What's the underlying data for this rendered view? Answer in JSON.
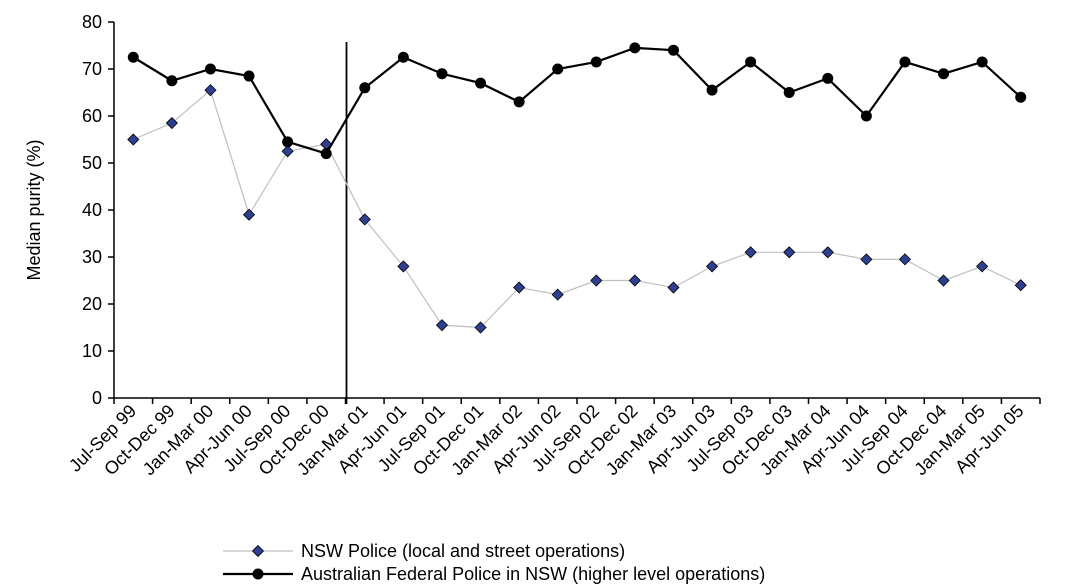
{
  "chart_data": {
    "type": "line",
    "ylabel": "Median purity (%)",
    "xlabel": "",
    "ylim": [
      0,
      80
    ],
    "yticks": [
      0,
      10,
      20,
      30,
      40,
      50,
      60,
      70,
      80
    ],
    "grid": false,
    "legend_position": "bottom",
    "categories": [
      "Jul-Sep 99",
      "Oct-Dec 99",
      "Jan-Mar 00",
      "Apr-Jun 00",
      "Jul-Sep 00",
      "Oct-Dec 00",
      "Jan-Mar 01",
      "Apr-Jun 01",
      "Jul-Sep 01",
      "Oct-Dec 01",
      "Jan-Mar 02",
      "Apr-Jun 02",
      "Jul-Sep 02",
      "Oct-Dec 02",
      "Jan-Mar 03",
      "Apr-Jun 03",
      "Jul-Sep 03",
      "Oct-Dec 03",
      "Jan-Mar 04",
      "Apr-Jun 04",
      "Jul-Sep 04",
      "Oct-Dec 04",
      "Jan-Mar 05",
      "Apr-Jun 05"
    ],
    "series": [
      {
        "name": "NSW  Police (local and street operations)",
        "marker": "diamond",
        "color": "#c0c0c0",
        "marker_color": "#2e3f8f",
        "values": [
          55,
          58.5,
          65.5,
          39,
          52.5,
          54,
          38,
          28,
          15.5,
          15,
          23.5,
          22,
          25,
          25,
          23.5,
          28,
          31,
          31,
          31,
          29.5,
          29.5,
          25,
          28,
          24
        ]
      },
      {
        "name": "Australian Federal Police in NSW (higher level operations)",
        "marker": "circle",
        "color": "#000000",
        "marker_color": "#000000",
        "values": [
          72.5,
          67.5,
          70,
          68.5,
          54.5,
          52,
          66,
          72.5,
          69,
          67,
          63,
          70,
          71.5,
          74.5,
          74,
          65.5,
          71.5,
          65,
          68,
          60,
          71.5,
          69,
          71.5,
          64
        ]
      }
    ],
    "vertical_marker_after_category": "Oct-Dec 00"
  }
}
